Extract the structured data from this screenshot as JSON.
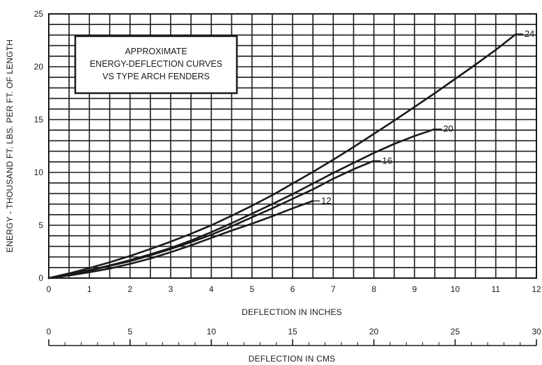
{
  "chart_data": {
    "type": "line",
    "title": "",
    "annotation": {
      "lines": [
        "APPROXIMATE",
        "ENERGY-DEFLECTION CURVES",
        "VS TYPE ARCH FENDERS"
      ]
    },
    "xlabel": "DEFLECTION IN INCHES",
    "ylabel": "ENERGY - THOUSAND FT. LBS. PER FT. OF LENGTH",
    "secondary_xlabel": "DEFLECTION IN CMS",
    "xlim": [
      0,
      12
    ],
    "ylim": [
      0,
      25
    ],
    "secondary_xlim": [
      0,
      30
    ],
    "x_ticks": [
      "0",
      "1",
      "2",
      "3",
      "4",
      "5",
      "6",
      "7",
      "8",
      "9",
      "10",
      "11",
      "12"
    ],
    "y_ticks": [
      "0",
      "5",
      "10",
      "15",
      "20",
      "25"
    ],
    "secondary_x_ticks": [
      "0",
      "5",
      "10",
      "15",
      "20",
      "25",
      "30"
    ],
    "grid": true,
    "colors": {
      "ink": "#1a1a1a",
      "background": "#ffffff"
    },
    "series": [
      {
        "name": "12",
        "x": [
          0,
          0.5,
          1,
          1.5,
          2,
          2.5,
          3,
          3.5,
          4,
          4.5,
          5,
          5.5,
          6,
          6.5
        ],
        "y": [
          0,
          0.25,
          0.55,
          0.9,
          1.35,
          1.85,
          2.45,
          3.1,
          3.8,
          4.5,
          5.15,
          5.85,
          6.6,
          7.3
        ]
      },
      {
        "name": "16",
        "x": [
          0,
          0.5,
          1,
          1.5,
          2,
          2.5,
          3,
          3.5,
          4,
          4.5,
          5,
          5.5,
          6,
          6.5,
          7,
          7.5,
          8
        ],
        "y": [
          0,
          0.3,
          0.7,
          1.15,
          1.6,
          2.15,
          2.75,
          3.4,
          4.1,
          4.9,
          5.75,
          6.6,
          7.5,
          8.4,
          9.4,
          10.3,
          11.1
        ]
      },
      {
        "name": "20",
        "x": [
          0,
          0.5,
          1,
          1.5,
          2,
          2.5,
          3,
          3.5,
          4,
          4.5,
          5,
          5.5,
          6,
          6.5,
          7,
          7.5,
          8,
          8.5,
          9,
          9.5
        ],
        "y": [
          0,
          0.35,
          0.75,
          1.2,
          1.7,
          2.25,
          2.85,
          3.55,
          4.35,
          5.2,
          6.1,
          7.0,
          7.95,
          8.95,
          9.95,
          10.9,
          11.85,
          12.7,
          13.45,
          14.1
        ]
      },
      {
        "name": "24",
        "x": [
          0,
          0.5,
          1,
          1.5,
          2,
          2.5,
          3,
          3.5,
          4,
          4.5,
          5,
          5.5,
          6,
          6.5,
          7,
          7.5,
          8,
          8.5,
          9,
          9.5,
          10,
          10.5,
          11,
          11.5
        ],
        "y": [
          0,
          0.45,
          0.95,
          1.5,
          2.1,
          2.75,
          3.45,
          4.2,
          5.0,
          5.9,
          6.85,
          7.85,
          8.95,
          10.05,
          11.2,
          12.4,
          13.65,
          14.9,
          16.2,
          17.5,
          18.85,
          20.2,
          21.6,
          23.1
        ]
      }
    ]
  }
}
